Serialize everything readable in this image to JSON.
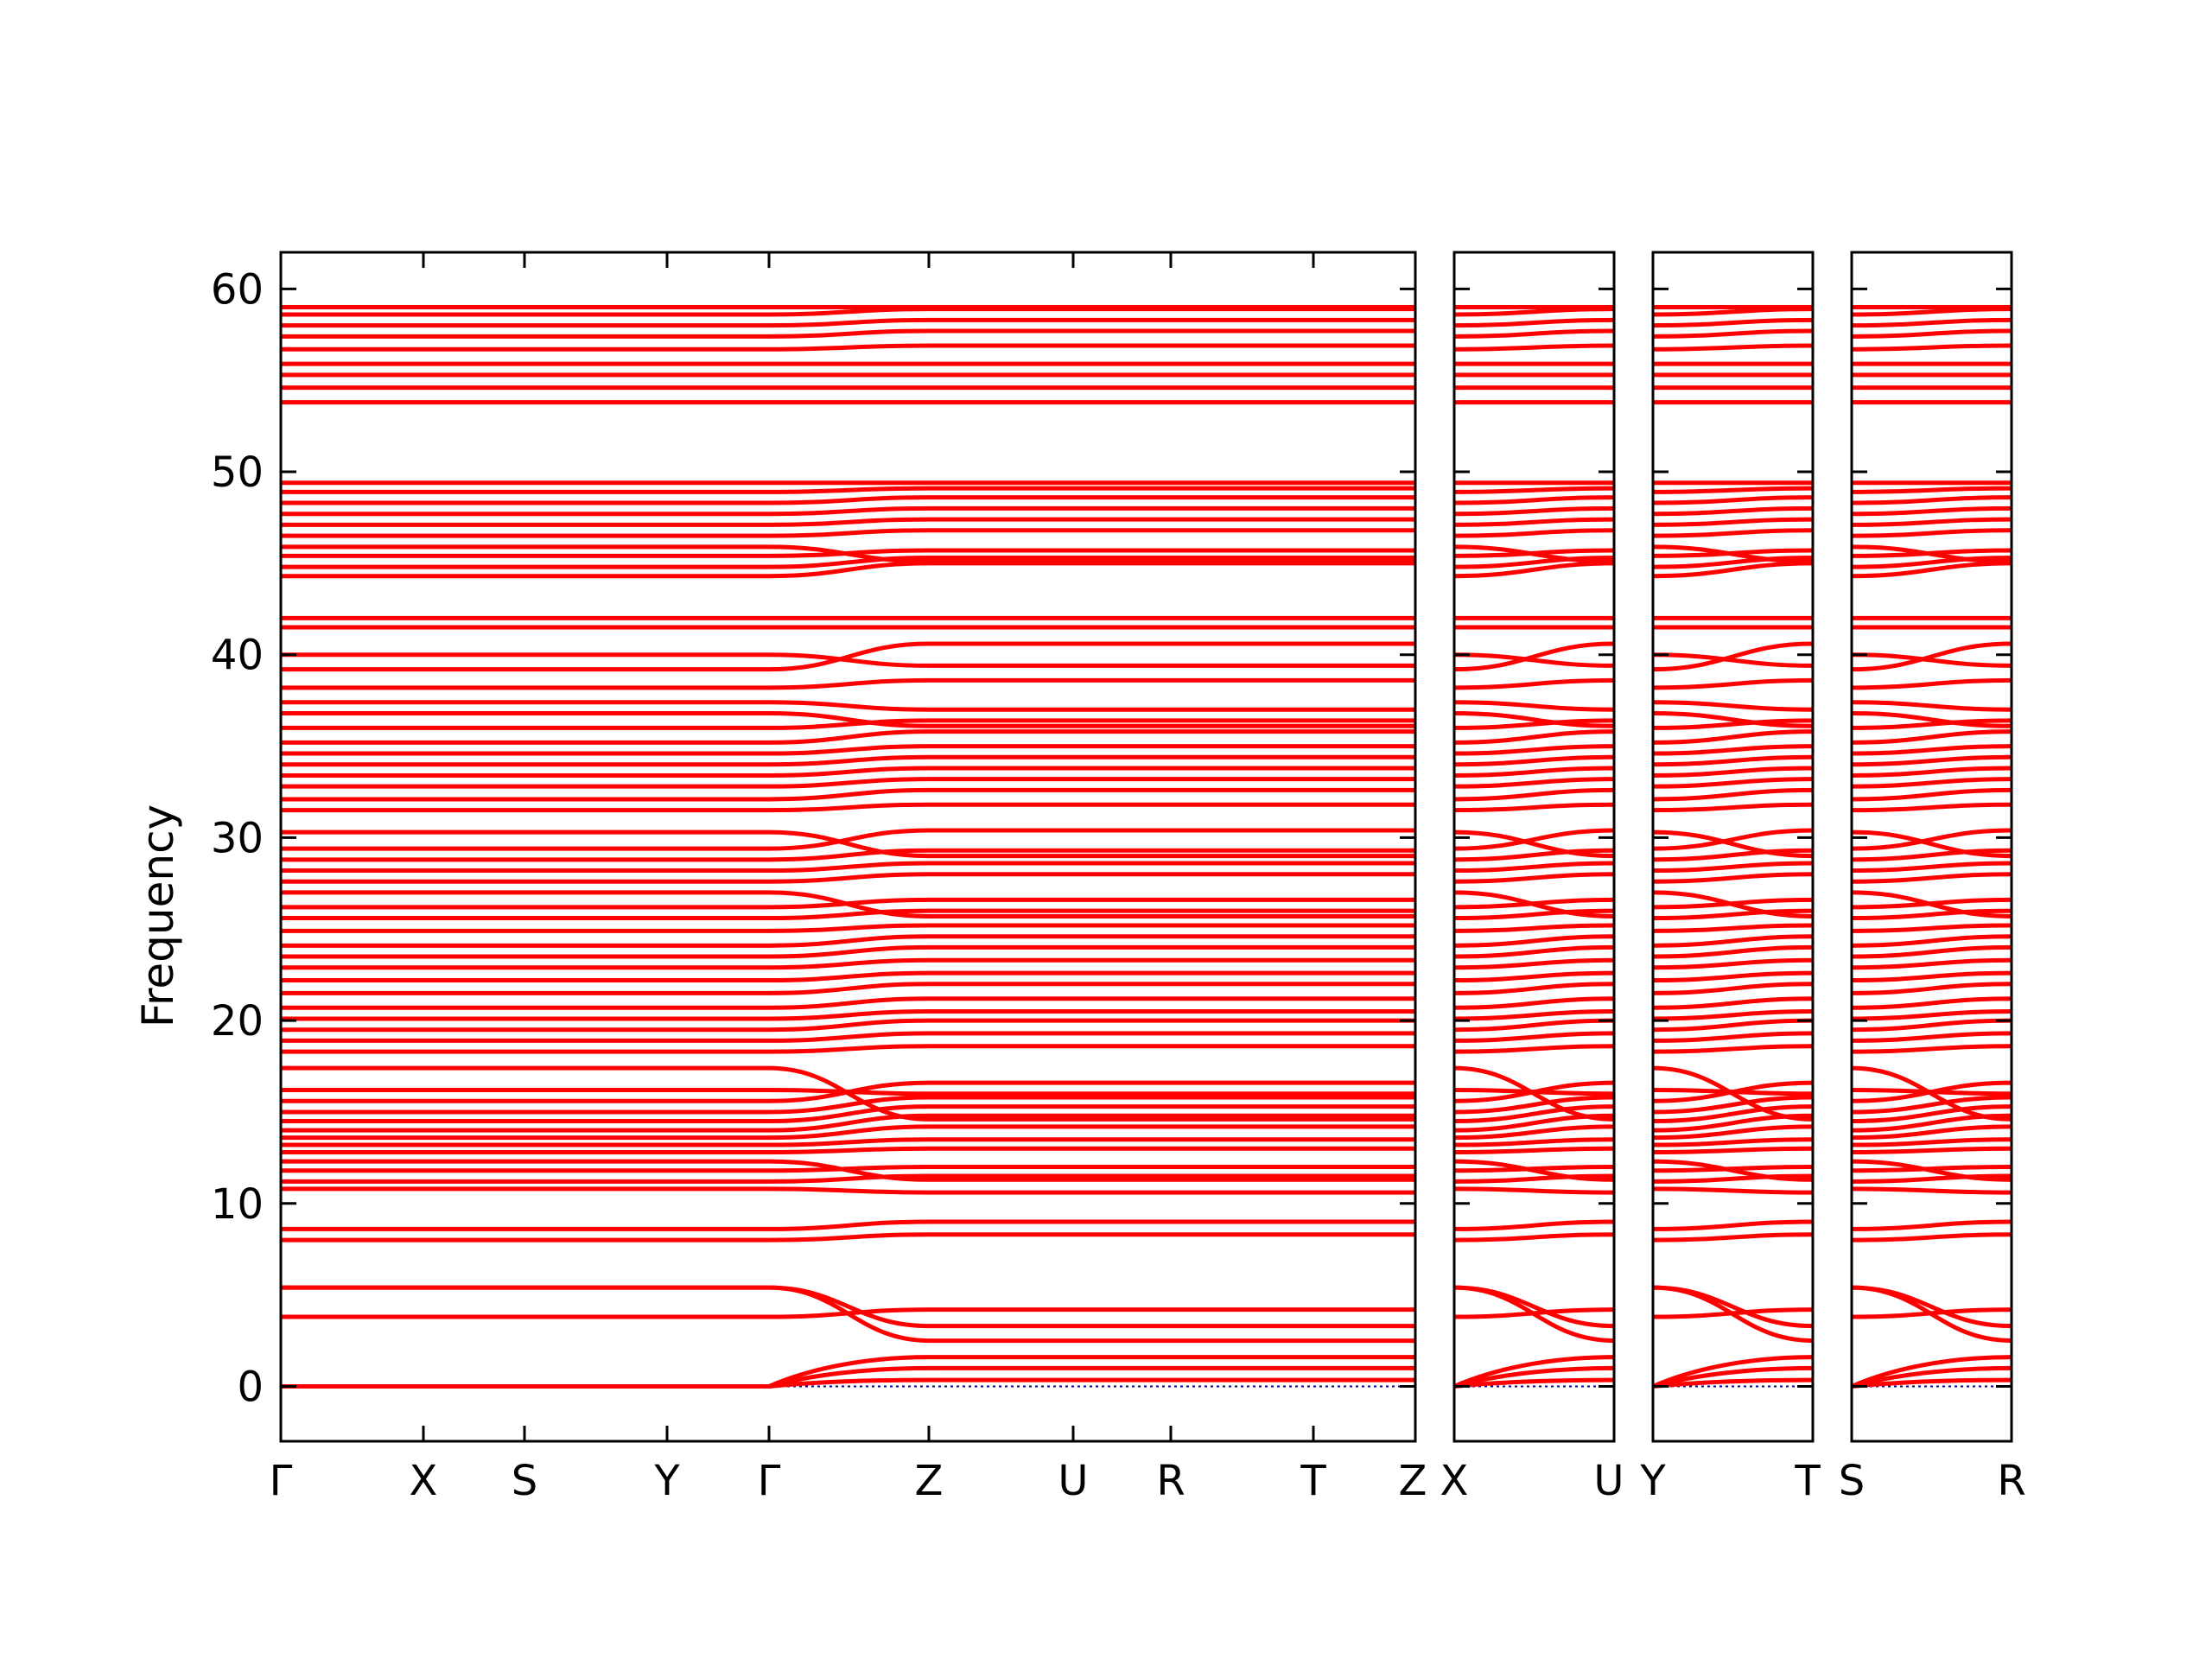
{
  "chart_data": {
    "type": "line",
    "title": "",
    "xlabel": "",
    "ylabel": "Frequency",
    "ylim": [
      -3,
      62
    ],
    "yticks": [
      0,
      10,
      20,
      30,
      40,
      50,
      60
    ],
    "grid": false,
    "legend": "none",
    "line_color": "#ff0000",
    "zero_line_color": "#00008b",
    "panels": [
      {
        "labels": [
          "Γ",
          "X",
          "S",
          "Y",
          "Γ",
          "Z",
          "U",
          "R",
          "T",
          "Z"
        ],
        "dispersive_from_label": 4,
        "dispersive_to_label": 5
      },
      {
        "labels": [
          "X",
          "U"
        ],
        "dispersive_from_label": 0,
        "dispersive_to_label": 1
      },
      {
        "labels": [
          "Y",
          "T"
        ],
        "dispersive_from_label": 0,
        "dispersive_to_label": 1
      },
      {
        "labels": [
          "S",
          "R"
        ],
        "dispersive_from_label": 0,
        "dispersive_to_label": 1
      }
    ],
    "series": [
      {
        "values_start": [
          0,
          0,
          0
        ],
        "values_end": [
          0,
          0,
          0
        ],
        "acoustic": true
      },
      {
        "values_start": [
          3.8,
          5.4,
          5.4
        ],
        "values_end": [
          4.2,
          3.3,
          2.5
        ]
      },
      {
        "values_start": [
          8.0,
          8.6
        ],
        "values_end": [
          8.3,
          9.0
        ]
      },
      {
        "values_start": [
          10.8,
          11.2,
          11.8,
          12.3
        ],
        "values_end": [
          10.6,
          11.5,
          12.0,
          11.3
        ]
      },
      {
        "values_start": [
          12.8,
          13.2,
          13.6,
          14.0,
          14.5
        ],
        "values_end": [
          13.0,
          13.5,
          14.2,
          14.8,
          15.3
        ]
      },
      {
        "values_start": [
          15.0,
          15.6,
          16.2,
          17.4
        ],
        "values_end": [
          15.8,
          16.6,
          16.0,
          14.6
        ]
      },
      {
        "values_start": [
          18.3,
          18.9,
          19.5,
          20.1,
          20.7
        ],
        "values_end": [
          18.6,
          19.3,
          20.0,
          20.5,
          21.2
        ]
      },
      {
        "values_start": [
          21.5,
          22.2,
          22.9,
          23.5,
          24.1
        ],
        "values_end": [
          22.0,
          22.6,
          23.3,
          24.0,
          24.6
        ]
      },
      {
        "values_start": [
          24.9,
          25.6,
          26.2,
          27.0
        ],
        "values_end": [
          25.2,
          26.0,
          26.6,
          25.7
        ]
      },
      {
        "values_start": [
          27.6,
          28.2,
          28.8,
          29.4,
          30.3
        ],
        "values_end": [
          28.0,
          28.6,
          29.3,
          30.4,
          29.0
        ]
      },
      {
        "values_start": [
          31.5,
          32.1,
          32.8,
          33.4,
          34.0
        ],
        "values_end": [
          31.8,
          32.6,
          33.2,
          33.8,
          34.4
        ]
      },
      {
        "values_start": [
          34.6,
          35.2,
          36.0,
          36.8
        ],
        "values_end": [
          35.0,
          35.8,
          36.4,
          36.1
        ]
      },
      {
        "values_start": [
          37.4,
          38.2,
          39.2,
          40.0
        ],
        "values_end": [
          37.0,
          38.6,
          40.6,
          39.4
        ]
      },
      {
        "values_start": [
          41.5,
          42.0
        ],
        "values_end": [
          41.5,
          42.0
        ]
      },
      {
        "values_start": [
          44.3,
          44.8,
          45.4,
          45.9
        ],
        "values_end": [
          45.0,
          45.3,
          45.7,
          45.1
        ]
      },
      {
        "values_start": [
          46.5,
          47.1,
          47.7,
          48.3,
          48.9,
          49.4
        ],
        "values_end": [
          46.8,
          47.4,
          48.0,
          48.6,
          49.1,
          49.4
        ]
      },
      {
        "values_start": [
          53.8,
          54.6,
          55.3,
          55.9
        ],
        "values_end": [
          53.8,
          54.6,
          55.3,
          55.9
        ]
      },
      {
        "values_start": [
          56.7,
          57.4,
          58.0,
          58.6,
          59.0
        ],
        "values_end": [
          56.9,
          57.7,
          58.3,
          58.9,
          59.0
        ]
      }
    ]
  }
}
